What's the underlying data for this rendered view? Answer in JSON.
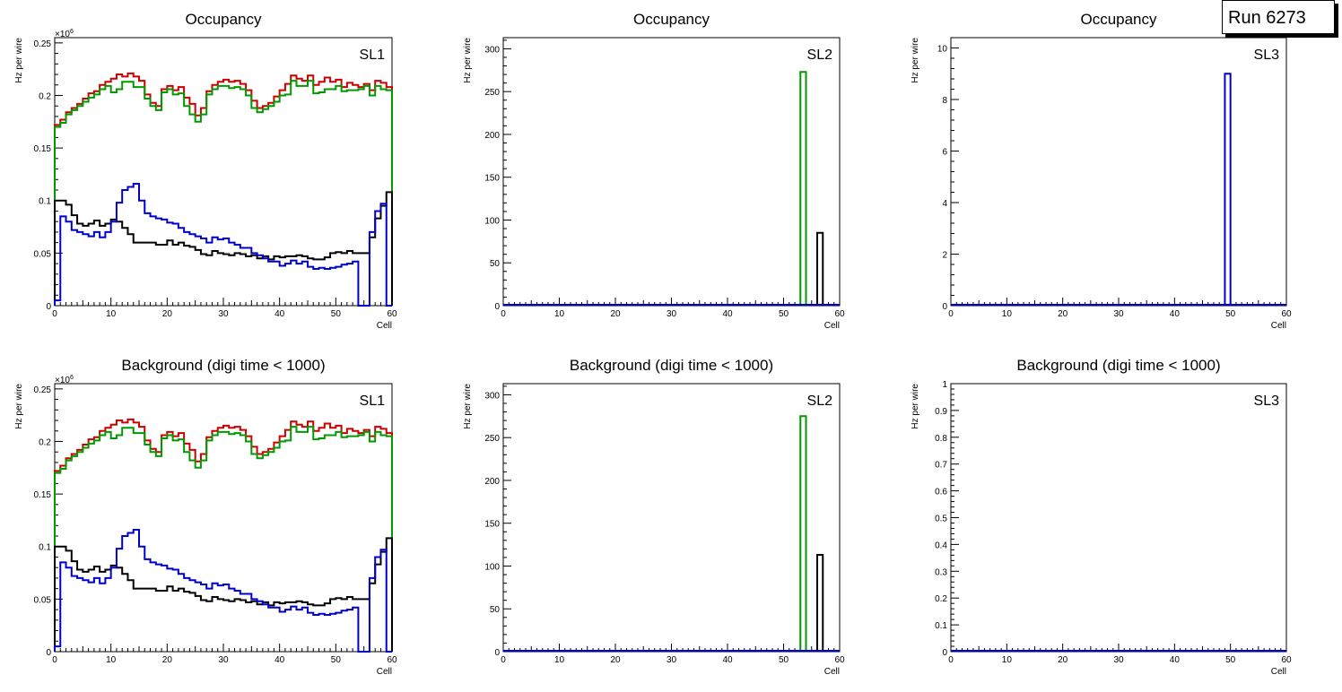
{
  "run_label": "Run 6273",
  "colors": {
    "red": "#cc0000",
    "green": "#009900",
    "black": "#000000",
    "blue": "#0000cc"
  },
  "chart_data": [
    {
      "type": "histogram",
      "title": "Occupancy",
      "tag": "SL1",
      "xlabel": "Cell",
      "ylabel": "Hz per wire",
      "xlim": [
        0,
        60
      ],
      "ylim": [
        0,
        0.255
      ],
      "exponent": "×10",
      "exponent_power": "6",
      "xticks": [
        0,
        10,
        20,
        30,
        40,
        50,
        60
      ],
      "yticks": [
        0,
        0.05,
        0.1,
        0.15,
        0.2,
        0.25
      ],
      "ytick_labels": [
        "0",
        "0.05",
        "0.1",
        "0.15",
        "0.2",
        "0.25"
      ],
      "series": [
        {
          "name": "red",
          "color": "#cc0000",
          "values": [
            0.172,
            0.177,
            0.184,
            0.188,
            0.192,
            0.197,
            0.202,
            0.204,
            0.21,
            0.213,
            0.216,
            0.22,
            0.218,
            0.221,
            0.218,
            0.214,
            0.201,
            0.193,
            0.19,
            0.206,
            0.209,
            0.205,
            0.208,
            0.198,
            0.192,
            0.181,
            0.188,
            0.204,
            0.21,
            0.213,
            0.215,
            0.213,
            0.214,
            0.211,
            0.205,
            0.195,
            0.188,
            0.19,
            0.193,
            0.199,
            0.205,
            0.211,
            0.219,
            0.216,
            0.214,
            0.219,
            0.21,
            0.213,
            0.217,
            0.213,
            0.215,
            0.208,
            0.212,
            0.21,
            0.208,
            0.211,
            0.205,
            0.214,
            0.212,
            0.208
          ]
        },
        {
          "name": "green",
          "color": "#009900",
          "values": [
            0.17,
            0.174,
            0.182,
            0.186,
            0.19,
            0.194,
            0.198,
            0.201,
            0.206,
            0.209,
            0.203,
            0.206,
            0.213,
            0.213,
            0.208,
            0.208,
            0.197,
            0.19,
            0.186,
            0.203,
            0.206,
            0.201,
            0.202,
            0.19,
            0.182,
            0.175,
            0.182,
            0.201,
            0.206,
            0.209,
            0.209,
            0.207,
            0.208,
            0.206,
            0.2,
            0.188,
            0.184,
            0.187,
            0.19,
            0.194,
            0.2,
            0.201,
            0.214,
            0.209,
            0.209,
            0.214,
            0.202,
            0.203,
            0.206,
            0.206,
            0.209,
            0.204,
            0.205,
            0.205,
            0.206,
            0.209,
            0.2,
            0.209,
            0.206,
            0.205
          ]
        },
        {
          "name": "black",
          "color": "#000000",
          "values": [
            0.1,
            0.1,
            0.096,
            0.086,
            0.078,
            0.076,
            0.078,
            0.081,
            0.076,
            0.078,
            0.082,
            0.08,
            0.074,
            0.068,
            0.06,
            0.06,
            0.06,
            0.06,
            0.058,
            0.058,
            0.062,
            0.058,
            0.06,
            0.057,
            0.056,
            0.053,
            0.049,
            0.048,
            0.052,
            0.05,
            0.049,
            0.048,
            0.05,
            0.049,
            0.047,
            0.048,
            0.045,
            0.047,
            0.044,
            0.047,
            0.046,
            0.047,
            0.047,
            0.048,
            0.047,
            0.045,
            0.044,
            0.044,
            0.046,
            0.05,
            0.051,
            0.05,
            0.052,
            0.05,
            0.05,
            0.05,
            0.065,
            0.083,
            0.095,
            0.108
          ]
        },
        {
          "name": "blue",
          "color": "#0000cc",
          "values": [
            0.005,
            0.085,
            0.08,
            0.072,
            0.07,
            0.068,
            0.066,
            0.07,
            0.065,
            0.07,
            0.08,
            0.098,
            0.11,
            0.113,
            0.116,
            0.1,
            0.088,
            0.085,
            0.083,
            0.082,
            0.079,
            0.078,
            0.074,
            0.07,
            0.068,
            0.066,
            0.064,
            0.06,
            0.065,
            0.063,
            0.064,
            0.06,
            0.058,
            0.055,
            0.055,
            0.05,
            0.048,
            0.045,
            0.042,
            0.042,
            0.038,
            0.04,
            0.043,
            0.04,
            0.042,
            0.037,
            0.035,
            0.036,
            0.035,
            0.036,
            0.037,
            0.039,
            0.04,
            0.042,
            0.0,
            0.0,
            0.07,
            0.09,
            0.097,
            0.0
          ]
        }
      ]
    },
    {
      "type": "histogram",
      "title": "Occupancy",
      "tag": "SL2",
      "xlabel": "Cell",
      "ylabel": "Hz per wire",
      "xlim": [
        0,
        60
      ],
      "ylim": [
        0,
        313
      ],
      "xticks": [
        0,
        10,
        20,
        30,
        40,
        50,
        60
      ],
      "yticks": [
        0,
        50,
        100,
        150,
        200,
        250,
        300
      ],
      "ytick_labels": [
        "0",
        "50",
        "100",
        "150",
        "200",
        "250",
        "300"
      ],
      "series": [
        {
          "name": "green",
          "color": "#009900",
          "spikes": [
            {
              "bin": 53,
              "value": 273
            }
          ]
        },
        {
          "name": "black",
          "color": "#000000",
          "spikes": [
            {
              "bin": 56,
              "value": 85
            }
          ]
        },
        {
          "name": "blue",
          "color": "#0000cc",
          "baseline": true
        }
      ]
    },
    {
      "type": "histogram",
      "title": "Occupancy",
      "tag": "SL3",
      "xlabel": "Cell",
      "ylabel": "Hz per wire",
      "xlim": [
        0,
        60
      ],
      "ylim": [
        0,
        10.4
      ],
      "xticks": [
        0,
        10,
        20,
        30,
        40,
        50,
        60
      ],
      "yticks": [
        0,
        2,
        4,
        6,
        8,
        10
      ],
      "ytick_labels": [
        "0",
        "2",
        "4",
        "6",
        "8",
        "10"
      ],
      "series": [
        {
          "name": "blue",
          "color": "#0000cc",
          "spikes": [
            {
              "bin": 49,
              "value": 9.0
            }
          ],
          "baseline": true
        }
      ]
    },
    {
      "type": "histogram",
      "title": "Background (digi time < 1000)",
      "tag": "SL1",
      "xlabel": "Cell",
      "ylabel": "Hz per wire",
      "xlim": [
        0,
        60
      ],
      "ylim": [
        0,
        0.255
      ],
      "exponent": "×10",
      "exponent_power": "6",
      "xticks": [
        0,
        10,
        20,
        30,
        40,
        50,
        60
      ],
      "yticks": [
        0,
        0.05,
        0.1,
        0.15,
        0.2,
        0.25
      ],
      "ytick_labels": [
        "0",
        "0.05",
        "0.1",
        "0.15",
        "0.2",
        "0.25"
      ],
      "series": [
        {
          "name": "red",
          "color": "#cc0000",
          "values": [
            0.172,
            0.177,
            0.184,
            0.188,
            0.192,
            0.197,
            0.202,
            0.204,
            0.21,
            0.213,
            0.216,
            0.22,
            0.218,
            0.221,
            0.218,
            0.214,
            0.201,
            0.193,
            0.19,
            0.206,
            0.209,
            0.205,
            0.208,
            0.198,
            0.192,
            0.181,
            0.188,
            0.204,
            0.21,
            0.213,
            0.215,
            0.213,
            0.214,
            0.211,
            0.205,
            0.195,
            0.188,
            0.19,
            0.193,
            0.199,
            0.205,
            0.211,
            0.219,
            0.216,
            0.214,
            0.219,
            0.21,
            0.213,
            0.217,
            0.213,
            0.215,
            0.208,
            0.212,
            0.21,
            0.208,
            0.211,
            0.205,
            0.214,
            0.212,
            0.208
          ]
        },
        {
          "name": "green",
          "color": "#009900",
          "values": [
            0.17,
            0.174,
            0.182,
            0.186,
            0.19,
            0.194,
            0.198,
            0.201,
            0.206,
            0.209,
            0.203,
            0.206,
            0.213,
            0.213,
            0.208,
            0.208,
            0.197,
            0.19,
            0.186,
            0.203,
            0.206,
            0.201,
            0.202,
            0.19,
            0.182,
            0.175,
            0.182,
            0.201,
            0.206,
            0.209,
            0.209,
            0.207,
            0.208,
            0.206,
            0.2,
            0.188,
            0.184,
            0.187,
            0.19,
            0.194,
            0.2,
            0.201,
            0.214,
            0.209,
            0.209,
            0.214,
            0.202,
            0.203,
            0.206,
            0.206,
            0.209,
            0.204,
            0.205,
            0.205,
            0.206,
            0.209,
            0.2,
            0.209,
            0.206,
            0.205
          ]
        },
        {
          "name": "black",
          "color": "#000000",
          "values": [
            0.1,
            0.1,
            0.096,
            0.086,
            0.078,
            0.076,
            0.078,
            0.081,
            0.076,
            0.078,
            0.082,
            0.08,
            0.074,
            0.068,
            0.06,
            0.06,
            0.06,
            0.06,
            0.058,
            0.058,
            0.062,
            0.058,
            0.06,
            0.057,
            0.056,
            0.053,
            0.049,
            0.048,
            0.052,
            0.05,
            0.049,
            0.048,
            0.05,
            0.049,
            0.047,
            0.048,
            0.045,
            0.047,
            0.044,
            0.047,
            0.046,
            0.047,
            0.047,
            0.048,
            0.047,
            0.045,
            0.044,
            0.044,
            0.046,
            0.05,
            0.051,
            0.05,
            0.052,
            0.05,
            0.05,
            0.05,
            0.065,
            0.083,
            0.095,
            0.108
          ]
        },
        {
          "name": "blue",
          "color": "#0000cc",
          "values": [
            0.005,
            0.085,
            0.08,
            0.072,
            0.07,
            0.068,
            0.066,
            0.07,
            0.065,
            0.07,
            0.08,
            0.098,
            0.11,
            0.113,
            0.116,
            0.1,
            0.088,
            0.085,
            0.083,
            0.082,
            0.079,
            0.078,
            0.074,
            0.07,
            0.068,
            0.066,
            0.064,
            0.06,
            0.065,
            0.063,
            0.064,
            0.06,
            0.058,
            0.055,
            0.055,
            0.05,
            0.048,
            0.045,
            0.042,
            0.042,
            0.038,
            0.04,
            0.043,
            0.04,
            0.042,
            0.037,
            0.035,
            0.036,
            0.035,
            0.036,
            0.037,
            0.039,
            0.04,
            0.042,
            0.0,
            0.0,
            0.07,
            0.09,
            0.097,
            0.0
          ]
        }
      ]
    },
    {
      "type": "histogram",
      "title": "Background (digi time < 1000)",
      "tag": "SL2",
      "xlabel": "Cell",
      "ylabel": "Hz per wire",
      "xlim": [
        0,
        60
      ],
      "ylim": [
        0,
        313
      ],
      "xticks": [
        0,
        10,
        20,
        30,
        40,
        50,
        60
      ],
      "yticks": [
        0,
        50,
        100,
        150,
        200,
        250,
        300
      ],
      "ytick_labels": [
        "0",
        "50",
        "100",
        "150",
        "200",
        "250",
        "300"
      ],
      "series": [
        {
          "name": "green",
          "color": "#009900",
          "spikes": [
            {
              "bin": 53,
              "value": 275
            }
          ]
        },
        {
          "name": "black",
          "color": "#000000",
          "spikes": [
            {
              "bin": 56,
              "value": 113
            }
          ]
        },
        {
          "name": "blue",
          "color": "#0000cc",
          "baseline": true
        }
      ]
    },
    {
      "type": "histogram",
      "title": "Background (digi time < 1000)",
      "tag": "SL3",
      "xlabel": "Cell",
      "ylabel": "Hz per wire",
      "xlim": [
        0,
        60
      ],
      "ylim": [
        0,
        1.0
      ],
      "xticks": [
        0,
        10,
        20,
        30,
        40,
        50,
        60
      ],
      "yticks": [
        0,
        0.1,
        0.2,
        0.3,
        0.4,
        0.5,
        0.6,
        0.7,
        0.8,
        0.9,
        1
      ],
      "ytick_labels": [
        "0",
        "0.1",
        "0.2",
        "0.3",
        "0.4",
        "0.5",
        "0.6",
        "0.7",
        "0.8",
        "0.9",
        "1"
      ],
      "series": [
        {
          "name": "blue",
          "color": "#0000cc",
          "baseline": true
        }
      ]
    }
  ]
}
